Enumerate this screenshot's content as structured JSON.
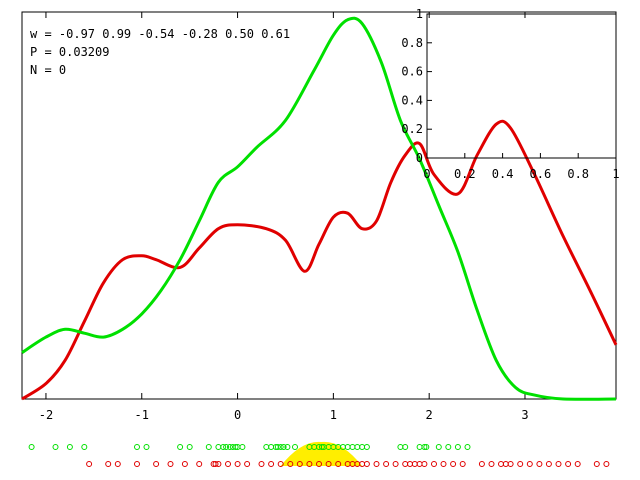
{
  "info": {
    "w_line": "w = -0.97 0.99 -0.54 -0.28 0.50 0.61",
    "p_line": "P = 0.03209",
    "n_line": "N = 0"
  },
  "colors": {
    "red": "#e00000",
    "green": "#00e000",
    "yellow": "#ffee00",
    "axis": "#000000"
  },
  "chart_data": [
    {
      "type": "line",
      "title": "",
      "xlabel": "",
      "ylabel": "",
      "xlim": [
        -2.25,
        3.95
      ],
      "xticks": [
        -2,
        -1,
        0,
        1,
        2,
        3
      ],
      "xtick_labels": [
        "-2",
        "-1",
        "0",
        "1",
        "2",
        "3"
      ],
      "ytick_labels_shown": false,
      "grid": false,
      "series": [
        {
          "color": "red",
          "x": [
            -2.25,
            -2.0,
            -1.8,
            -1.6,
            -1.4,
            -1.2,
            -1.0,
            -0.85,
            -0.6,
            -0.4,
            -0.2,
            0.0,
            0.3,
            0.5,
            0.7,
            0.85,
            1.0,
            1.15,
            1.3,
            1.45,
            1.6,
            1.75,
            1.9,
            2.05,
            2.3,
            2.5,
            2.7,
            2.85,
            3.1,
            3.4,
            3.7,
            3.95
          ],
          "y": [
            0.0,
            0.04,
            0.1,
            0.2,
            0.3,
            0.36,
            0.37,
            0.36,
            0.34,
            0.39,
            0.44,
            0.45,
            0.44,
            0.41,
            0.33,
            0.4,
            0.47,
            0.48,
            0.44,
            0.46,
            0.56,
            0.63,
            0.66,
            0.58,
            0.53,
            0.63,
            0.71,
            0.7,
            0.58,
            0.42,
            0.27,
            0.14
          ]
        },
        {
          "color": "green",
          "x": [
            -2.25,
            -2.0,
            -1.8,
            -1.6,
            -1.4,
            -1.2,
            -1.0,
            -0.8,
            -0.6,
            -0.4,
            -0.2,
            0.0,
            0.2,
            0.5,
            0.8,
            1.0,
            1.15,
            1.3,
            1.5,
            1.7,
            1.9,
            2.1,
            2.3,
            2.5,
            2.7,
            2.9,
            3.1,
            3.4,
            3.95
          ],
          "y": [
            0.12,
            0.16,
            0.18,
            0.17,
            0.16,
            0.18,
            0.22,
            0.28,
            0.36,
            0.46,
            0.56,
            0.6,
            0.65,
            0.72,
            0.85,
            0.94,
            0.98,
            0.97,
            0.87,
            0.72,
            0.62,
            0.5,
            0.38,
            0.23,
            0.1,
            0.03,
            0.01,
            0.0,
            0.0
          ]
        }
      ]
    },
    {
      "type": "line",
      "title": "",
      "xlim": [
        0,
        1
      ],
      "ylim": [
        0,
        1
      ],
      "xticks": [
        0,
        0.2,
        0.4,
        0.6,
        0.8,
        1
      ],
      "xtick_labels": [
        "0",
        "0.2",
        "0.4",
        "0.6",
        "0.8",
        "1"
      ],
      "yticks": [
        0,
        0.2,
        0.4,
        0.6,
        0.8,
        1
      ],
      "ytick_labels": [
        "0",
        "0.2",
        "0.4",
        "0.6",
        "0.8",
        "1"
      ],
      "grid": false,
      "series": []
    },
    {
      "type": "scatter",
      "title": "",
      "xlim": [
        -2.25,
        3.95
      ],
      "series": [
        {
          "color": "green",
          "marker": "circle",
          "x": [
            -2.15,
            -1.9,
            -1.75,
            -1.6,
            -1.05,
            -0.95,
            -0.6,
            -0.5,
            -0.3,
            -0.2,
            -0.15,
            -0.12,
            -0.08,
            -0.05,
            -0.02,
            0.0,
            0.05,
            0.3,
            0.35,
            0.4,
            0.42,
            0.45,
            0.48,
            0.52,
            0.6,
            0.75,
            0.8,
            0.85,
            0.88,
            0.9,
            0.95,
            1.0,
            1.05,
            1.1,
            1.15,
            1.2,
            1.25,
            1.3,
            1.35,
            1.7,
            1.75,
            1.9,
            1.95,
            1.97,
            2.1,
            2.2,
            2.3,
            2.4
          ]
        },
        {
          "color": "red",
          "marker": "circle",
          "x": [
            -1.55,
            -1.35,
            -1.25,
            -1.05,
            -0.85,
            -0.7,
            -0.55,
            -0.4,
            -0.25,
            -0.23,
            -0.2,
            -0.1,
            0.0,
            0.1,
            0.25,
            0.35,
            0.45,
            0.55,
            0.65,
            0.75,
            0.85,
            0.95,
            1.05,
            1.15,
            1.2,
            1.25,
            1.3,
            1.35,
            1.45,
            1.55,
            1.65,
            1.75,
            1.8,
            1.85,
            1.9,
            1.95,
            2.05,
            2.15,
            2.25,
            2.35,
            2.55,
            2.65,
            2.75,
            2.8,
            2.85,
            2.95,
            3.05,
            3.15,
            3.25,
            3.35,
            3.45,
            3.55,
            3.75,
            3.85
          ]
        }
      ],
      "shaded_region": {
        "color": "yellow",
        "x_range": [
          0.45,
          1.3
        ]
      }
    }
  ]
}
